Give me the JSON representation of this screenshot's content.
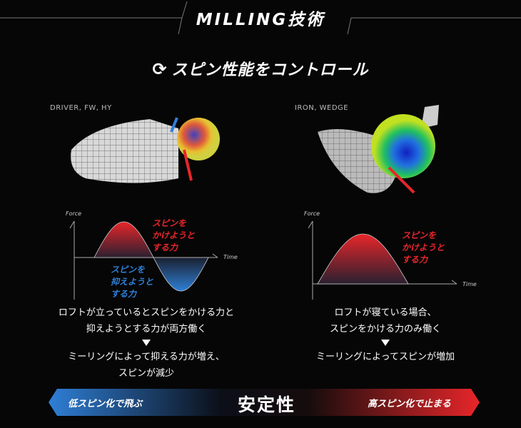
{
  "header": {
    "title": "MILLING技術",
    "subtitle": "スピン性能をコントロール",
    "subtitle_icon": "rotate-arrows-icon"
  },
  "left": {
    "label": "DRIVER, FW, HY",
    "chart": {
      "y_label": "Force",
      "x_label": "Time",
      "positive_label": [
        "スピンを",
        "かけようと",
        "する力"
      ],
      "negative_label": [
        "スピンを",
        "抑えようと",
        "する力"
      ]
    },
    "desc_1": [
      "ロフトが立っているとスピンをかける力と",
      "抑えようとする力が両方働く"
    ],
    "desc_2": [
      "ミーリングによって抑える力が増え、",
      "スピンが減少"
    ]
  },
  "right": {
    "label": "IRON, WEDGE",
    "chart": {
      "y_label": "Force",
      "x_label": "Time",
      "positive_label": [
        "スピンを",
        "かけようと",
        "する力"
      ]
    },
    "desc_1": [
      "ロフトが寝ている場合、",
      "スピンをかける力のみ働く"
    ],
    "desc_2": [
      "ミーリングによってスピンが増加"
    ]
  },
  "bottom_bar": {
    "left": "低スピン化で飛ぶ",
    "center": "安定性",
    "right": "高スピン化で止まる"
  },
  "colors": {
    "red": "#e8262a",
    "blue": "#2f7fd6",
    "background": "#060606"
  }
}
